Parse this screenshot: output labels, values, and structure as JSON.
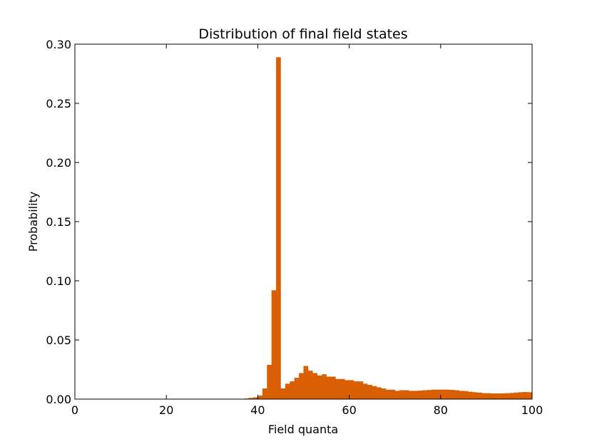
{
  "chart_data": {
    "type": "bar",
    "title": "Distribution of final field states",
    "xlabel": "Field quanta",
    "ylabel": "Probability",
    "xlim": [
      0,
      100
    ],
    "ylim": [
      0,
      0.3
    ],
    "xticks": [
      0,
      20,
      40,
      60,
      80,
      100
    ],
    "xtick_labels": [
      "0",
      "20",
      "40",
      "60",
      "80",
      "100"
    ],
    "yticks": [
      0.0,
      0.05,
      0.1,
      0.15,
      0.2,
      0.25,
      0.3
    ],
    "ytick_labels": [
      "0.00",
      "0.05",
      "0.10",
      "0.15",
      "0.20",
      "0.25",
      "0.30"
    ],
    "grid": false,
    "bar_color": "#d95f02",
    "x": [
      36,
      37,
      38,
      39,
      40,
      41,
      42,
      43,
      44,
      45,
      46,
      47,
      48,
      49,
      50,
      51,
      52,
      53,
      54,
      55,
      56,
      57,
      58,
      59,
      60,
      61,
      62,
      63,
      64,
      65,
      66,
      67,
      68,
      69,
      70,
      71,
      72,
      73,
      74,
      75,
      76,
      77,
      78,
      79,
      80,
      81,
      82,
      83,
      84,
      85,
      86,
      87,
      88,
      89,
      90,
      91,
      92,
      93,
      94,
      95,
      96,
      97,
      98,
      99
    ],
    "values": [
      0.0003,
      0.0005,
      0.001,
      0.0015,
      0.003,
      0.009,
      0.029,
      0.092,
      0.289,
      0.009,
      0.013,
      0.015,
      0.018,
      0.022,
      0.028,
      0.024,
      0.022,
      0.02,
      0.021,
      0.019,
      0.019,
      0.017,
      0.017,
      0.016,
      0.016,
      0.015,
      0.015,
      0.013,
      0.012,
      0.011,
      0.01,
      0.009,
      0.008,
      0.008,
      0.007,
      0.0075,
      0.0075,
      0.007,
      0.007,
      0.0072,
      0.0075,
      0.0077,
      0.008,
      0.008,
      0.008,
      0.008,
      0.0078,
      0.0075,
      0.007,
      0.0068,
      0.0062,
      0.0058,
      0.0055,
      0.005,
      0.005,
      0.0048,
      0.0048,
      0.0048,
      0.005,
      0.0052,
      0.0055,
      0.0058,
      0.006,
      0.0058
    ]
  }
}
